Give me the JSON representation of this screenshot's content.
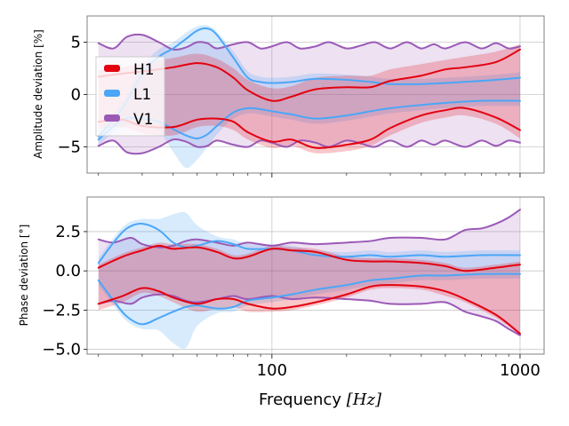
{
  "figure": {
    "xlabel": {
      "text": "Frequency",
      "unit": "[Hz]"
    }
  },
  "chart_data": [
    {
      "type": "line",
      "panel": "amplitude",
      "ylabel": "Amplitude deviation",
      "yunit": "[%]",
      "xscale": "log",
      "xlim": [
        18,
        1250
      ],
      "ylim": [
        -7.5,
        7.5
      ],
      "xticks": [
        100,
        1000
      ],
      "xtick_labels": [
        "100",
        "1000"
      ],
      "yticks": [
        5,
        0,
        -5
      ],
      "ytick_labels": [
        "5",
        "0",
        "−5"
      ],
      "grid": true,
      "legend": {
        "position": "upper-left",
        "entries": [
          "H1",
          "L1",
          "V1"
        ]
      },
      "series": [
        {
          "name": "H1",
          "color": "#e3000f",
          "x": [
            20,
            25,
            30,
            40,
            50,
            60,
            70,
            80,
            100,
            120,
            150,
            200,
            250,
            300,
            400,
            500,
            600,
            800,
            1000
          ],
          "upper": [
            1.7,
            2.0,
            2.2,
            2.6,
            3.0,
            2.6,
            1.6,
            0.4,
            -0.6,
            -0.2,
            0.5,
            0.7,
            0.7,
            1.3,
            1.8,
            2.4,
            2.6,
            3.1,
            4.3
          ],
          "lower": [
            -2.6,
            -2.4,
            -3.0,
            -3.1,
            -2.4,
            -2.3,
            -2.6,
            -3.6,
            -4.5,
            -4.3,
            -5.1,
            -4.8,
            -4.3,
            -3.2,
            -2.0,
            -1.5,
            -1.3,
            -2.2,
            -3.4
          ],
          "band_upper": [
            2.3,
            2.6,
            3.0,
            3.5,
            3.9,
            3.4,
            2.5,
            1.4,
            0.6,
            0.8,
            1.6,
            1.8,
            1.8,
            2.4,
            2.9,
            3.3,
            3.6,
            4.1,
            4.8
          ],
          "band_lower": [
            -3.3,
            -3.1,
            -3.7,
            -3.9,
            -3.1,
            -3.0,
            -3.4,
            -4.3,
            -5.1,
            -4.9,
            -5.6,
            -5.4,
            -4.9,
            -3.9,
            -2.7,
            -2.2,
            -2.0,
            -2.8,
            -4.2
          ]
        },
        {
          "name": "L1",
          "color": "#4ba6f7",
          "x": [
            20,
            25,
            30,
            35,
            40,
            45,
            50,
            55,
            60,
            70,
            80,
            90,
            100,
            120,
            150,
            200,
            250,
            300,
            400,
            500,
            700,
            1000
          ],
          "upper": [
            -4.0,
            -1.3,
            2.0,
            3.6,
            4.4,
            5.3,
            6.1,
            6.3,
            5.7,
            3.5,
            1.6,
            1.2,
            1.1,
            1.2,
            1.5,
            1.4,
            1.2,
            1.0,
            1.0,
            1.1,
            1.3,
            1.6
          ],
          "lower": [
            -4.3,
            -2.4,
            -2.3,
            -2.6,
            -3.3,
            -3.9,
            -4.2,
            -3.8,
            -3.0,
            -1.7,
            -1.3,
            -1.4,
            -1.6,
            -1.9,
            -2.3,
            -2.0,
            -1.6,
            -1.3,
            -1.0,
            -0.8,
            -0.6,
            -0.6
          ],
          "band_upper": [
            -3.5,
            -0.6,
            2.7,
            4.3,
            5.0,
            5.9,
            6.5,
            6.6,
            6.0,
            4.1,
            2.2,
            1.7,
            1.6,
            1.7,
            2.0,
            1.9,
            1.7,
            1.5,
            1.5,
            1.6,
            1.8,
            2.1
          ],
          "band_lower": [
            -4.8,
            -3.1,
            -3.0,
            -3.5,
            -5.5,
            -7.0,
            -6.2,
            -5.0,
            -3.8,
            -2.3,
            -1.8,
            -1.9,
            -2.1,
            -2.4,
            -2.8,
            -2.5,
            -2.1,
            -1.8,
            -1.5,
            -1.3,
            -1.1,
            -1.1
          ]
        },
        {
          "name": "V1",
          "color": "#9b59b6",
          "x": [
            20,
            23,
            26,
            30,
            35,
            40,
            45,
            50,
            55,
            60,
            70,
            80,
            90,
            100,
            115,
            130,
            150,
            170,
            200,
            230,
            260,
            300,
            350,
            400,
            450,
            500,
            600,
            700,
            800,
            900,
            1000
          ],
          "upper": [
            4.9,
            4.4,
            5.5,
            5.7,
            5.0,
            4.3,
            4.5,
            5.0,
            4.9,
            4.4,
            4.8,
            5.0,
            4.4,
            4.6,
            5.0,
            4.4,
            4.6,
            5.0,
            4.4,
            4.7,
            5.0,
            4.4,
            5.0,
            4.4,
            4.8,
            4.4,
            5.0,
            4.4,
            4.9,
            4.4,
            4.6
          ],
          "lower": [
            -4.9,
            -4.4,
            -5.5,
            -5.6,
            -5.0,
            -4.3,
            -4.5,
            -5.0,
            -4.9,
            -4.4,
            -4.8,
            -5.0,
            -4.4,
            -4.6,
            -5.0,
            -4.4,
            -4.6,
            -5.0,
            -4.4,
            -4.7,
            -5.0,
            -4.4,
            -5.0,
            -4.4,
            -4.8,
            -4.4,
            -5.0,
            -4.4,
            -4.9,
            -4.4,
            -4.6
          ],
          "band_upper": [
            4.9,
            4.4,
            5.5,
            5.7,
            5.0,
            4.3,
            4.5,
            5.0,
            4.9,
            4.4,
            4.8,
            5.0,
            4.4,
            4.6,
            5.0,
            4.4,
            4.6,
            5.0,
            4.4,
            4.7,
            5.0,
            4.4,
            5.0,
            4.4,
            4.8,
            4.4,
            5.0,
            4.4,
            4.9,
            4.4,
            4.6
          ],
          "band_lower": [
            -4.9,
            -4.4,
            -5.5,
            -5.6,
            -5.0,
            -4.3,
            -4.5,
            -5.0,
            -4.9,
            -4.4,
            -4.8,
            -5.0,
            -4.4,
            -4.6,
            -5.0,
            -4.4,
            -4.6,
            -5.0,
            -4.4,
            -4.7,
            -5.0,
            -4.4,
            -5.0,
            -4.4,
            -4.8,
            -4.4,
            -5.0,
            -4.4,
            -4.9,
            -4.4,
            -4.6
          ]
        }
      ]
    },
    {
      "type": "line",
      "panel": "phase",
      "ylabel": "Phase deviation",
      "yunit": "[°]",
      "xscale": "log",
      "xlim": [
        18,
        1250
      ],
      "ylim": [
        -5.3,
        4.7
      ],
      "xticks": [
        100,
        1000
      ],
      "xtick_labels": [
        "100",
        "1000"
      ],
      "yticks": [
        2.5,
        0,
        -2.5,
        -5
      ],
      "ytick_labels": [
        "2.5",
        "0.0",
        "−2.5",
        "−5.0"
      ],
      "grid": true,
      "series": [
        {
          "name": "H1",
          "color": "#e3000f",
          "x": [
            20,
            25,
            30,
            35,
            40,
            50,
            60,
            70,
            80,
            100,
            120,
            150,
            200,
            250,
            300,
            400,
            500,
            600,
            800,
            1000
          ],
          "upper": [
            0.2,
            0.9,
            1.3,
            1.6,
            1.4,
            1.5,
            1.2,
            0.8,
            0.9,
            1.4,
            1.3,
            1.2,
            0.7,
            0.6,
            0.6,
            0.5,
            0.3,
            0.0,
            0.2,
            0.4
          ],
          "lower": [
            -2.1,
            -1.6,
            -1.1,
            -1.3,
            -1.7,
            -2.1,
            -1.8,
            -1.8,
            -2.1,
            -2.4,
            -2.3,
            -2.0,
            -1.5,
            -1.0,
            -0.9,
            -1.0,
            -1.3,
            -1.8,
            -2.8,
            -4.0
          ],
          "band_upper": [
            0.4,
            1.1,
            1.5,
            1.8,
            1.7,
            1.7,
            1.4,
            1.0,
            1.1,
            1.6,
            1.5,
            1.4,
            0.9,
            0.8,
            0.8,
            0.7,
            0.5,
            0.2,
            0.4,
            0.6
          ],
          "band_lower": [
            -2.5,
            -2.0,
            -1.4,
            -1.6,
            -2.0,
            -2.6,
            -2.4,
            -2.3,
            -2.6,
            -2.6,
            -2.5,
            -2.2,
            -1.7,
            -1.2,
            -1.1,
            -1.2,
            -1.6,
            -2.0,
            -3.0,
            -4.1
          ]
        },
        {
          "name": "L1",
          "color": "#4ba6f7",
          "x": [
            20,
            23,
            26,
            30,
            35,
            40,
            45,
            50,
            60,
            70,
            80,
            100,
            120,
            150,
            200,
            250,
            300,
            400,
            500,
            700,
            1000
          ],
          "upper": [
            0.5,
            1.8,
            2.7,
            3.0,
            2.6,
            1.8,
            1.5,
            1.6,
            1.9,
            1.7,
            1.4,
            1.4,
            1.3,
            1.0,
            0.9,
            1.0,
            0.9,
            1.0,
            0.9,
            1.0,
            1.0
          ],
          "lower": [
            -0.6,
            -1.9,
            -2.9,
            -3.4,
            -3.0,
            -2.6,
            -2.3,
            -2.2,
            -2.4,
            -2.3,
            -1.9,
            -1.7,
            -1.5,
            -1.2,
            -0.9,
            -0.6,
            -0.5,
            -0.3,
            -0.3,
            -0.2,
            -0.2
          ],
          "band_upper": [
            0.8,
            2.1,
            3.0,
            3.3,
            3.3,
            3.6,
            3.7,
            2.9,
            2.2,
            2.0,
            1.7,
            1.7,
            1.6,
            1.3,
            1.2,
            1.3,
            1.2,
            1.3,
            1.2,
            1.3,
            1.3
          ],
          "band_lower": [
            -0.9,
            -2.2,
            -3.2,
            -3.7,
            -3.8,
            -4.6,
            -4.9,
            -3.5,
            -2.7,
            -2.6,
            -2.2,
            -2.0,
            -1.8,
            -1.5,
            -1.2,
            -0.9,
            -0.8,
            -0.6,
            -0.6,
            -0.5,
            -0.5
          ]
        },
        {
          "name": "V1",
          "color": "#9b59b6",
          "x": [
            20,
            23,
            27,
            30,
            35,
            40,
            45,
            50,
            60,
            70,
            80,
            100,
            120,
            150,
            200,
            250,
            300,
            400,
            500,
            600,
            700,
            800,
            900,
            1000
          ],
          "upper": [
            2.0,
            1.8,
            2.1,
            1.7,
            1.5,
            1.6,
            1.9,
            2.0,
            1.8,
            1.6,
            1.8,
            1.6,
            1.8,
            1.7,
            1.8,
            1.9,
            2.1,
            2.1,
            2.0,
            2.6,
            2.7,
            3.0,
            3.4,
            3.9
          ],
          "lower": [
            -2.1,
            -1.9,
            -2.1,
            -1.7,
            -1.5,
            -1.6,
            -1.9,
            -2.0,
            -1.8,
            -1.6,
            -1.8,
            -1.6,
            -1.8,
            -1.7,
            -1.8,
            -1.9,
            -2.1,
            -2.1,
            -2.0,
            -2.6,
            -2.9,
            -3.2,
            -3.7,
            -4.1
          ],
          "band_upper": [
            2.0,
            1.8,
            2.1,
            1.7,
            1.5,
            1.6,
            1.9,
            2.0,
            1.8,
            1.6,
            1.8,
            1.6,
            1.8,
            1.7,
            1.8,
            1.9,
            2.1,
            2.1,
            2.0,
            2.6,
            2.7,
            3.0,
            3.4,
            3.9
          ],
          "band_lower": [
            -2.1,
            -1.9,
            -2.1,
            -1.7,
            -1.5,
            -1.6,
            -1.9,
            -2.0,
            -1.8,
            -1.6,
            -1.8,
            -1.6,
            -1.8,
            -1.7,
            -1.8,
            -1.9,
            -2.1,
            -2.1,
            -2.0,
            -2.6,
            -2.9,
            -3.2,
            -3.7,
            -4.1
          ]
        }
      ]
    }
  ]
}
